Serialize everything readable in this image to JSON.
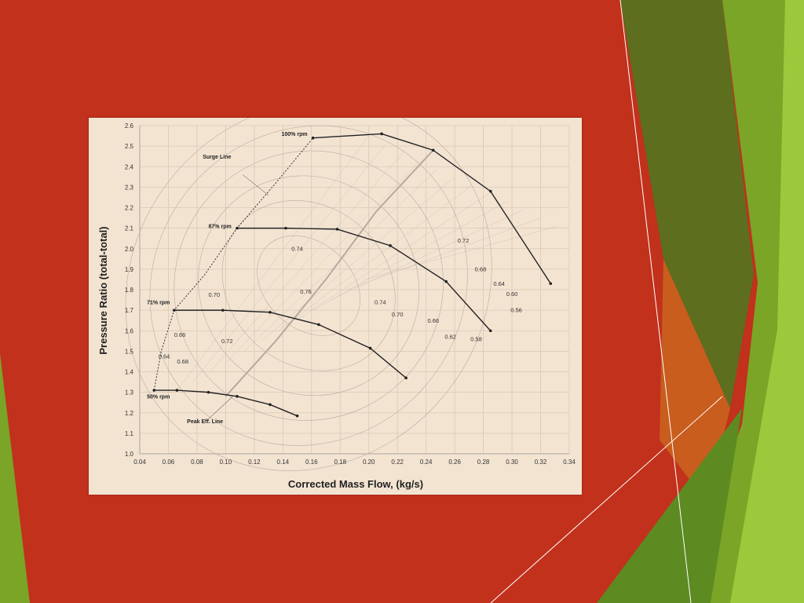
{
  "colors": {
    "slide_background": "#c1311c",
    "panel_background": "#f3e4d2",
    "speed_line": "#222222",
    "contour": "#b9aa9c",
    "grid": "#d9c7b5",
    "peak_line": "#b5aaa0",
    "green_dark": "#5d6e1e",
    "green_mid": "#7aa527",
    "green_light": "#9cc93b",
    "orange": "#c9651f"
  },
  "chart_data": {
    "type": "line",
    "xlabel": "Corrected Mass Flow, (kg/s)",
    "ylabel": "Pressure Ratio (total-total)",
    "xlim": [
      0.04,
      0.34
    ],
    "ylim": [
      1.0,
      2.6
    ],
    "xticks": [
      "0.04",
      "0.06",
      "0.08",
      "0.10",
      "0.12",
      "0.14",
      "0.16",
      "0.18",
      "0.20",
      "0.22",
      "0.24",
      "0.26",
      "0.28",
      "0.30",
      "0.32",
      "0.34"
    ],
    "yticks": [
      "1.0",
      "1.1",
      "1.2",
      "1.3",
      "1.4",
      "1.5",
      "1.6",
      "1.7",
      "1.8",
      "1.9",
      "2.0",
      "2.1",
      "2.2",
      "2.3",
      "2.4",
      "2.5",
      "2.6"
    ],
    "grid": true,
    "series": [
      {
        "name": "100% rpm",
        "x": [
          0.161,
          0.209,
          0.245,
          0.285,
          0.327
        ],
        "y": [
          2.54,
          2.56,
          2.48,
          2.28,
          1.83
        ]
      },
      {
        "name": "87% rpm",
        "x": [
          0.108,
          0.142,
          0.178,
          0.215,
          0.254,
          0.285
        ],
        "y": [
          2.1,
          2.1,
          2.095,
          2.015,
          1.84,
          1.6
        ]
      },
      {
        "name": "71% rpm",
        "x": [
          0.064,
          0.098,
          0.131,
          0.165,
          0.201,
          0.226
        ],
        "y": [
          1.7,
          1.7,
          1.69,
          1.63,
          1.515,
          1.37
        ]
      },
      {
        "name": "50% rpm",
        "x": [
          0.05,
          0.066,
          0.088,
          0.108,
          0.131,
          0.15
        ],
        "y": [
          1.31,
          1.31,
          1.3,
          1.28,
          1.24,
          1.185
        ]
      }
    ],
    "surge_line": {
      "name": "Surge Line",
      "x": [
        0.05,
        0.055,
        0.064,
        0.085,
        0.108,
        0.135,
        0.161
      ],
      "y": [
        1.31,
        1.5,
        1.7,
        1.87,
        2.1,
        2.32,
        2.54
      ]
    },
    "peak_efficiency_line": {
      "name": "Peak Eff. Line",
      "x": [
        0.1,
        0.135,
        0.17,
        0.205,
        0.245
      ],
      "y": [
        1.28,
        1.55,
        1.85,
        2.18,
        2.48
      ]
    },
    "efficiency_labels": [
      {
        "text": "0.74",
        "x": 0.15,
        "y": 1.99
      },
      {
        "text": "0.76",
        "x": 0.156,
        "y": 1.78
      },
      {
        "text": "0.74",
        "x": 0.208,
        "y": 1.73
      },
      {
        "text": "0.72",
        "x": 0.266,
        "y": 2.03
      },
      {
        "text": "0.68",
        "x": 0.278,
        "y": 1.89
      },
      {
        "text": "0.64",
        "x": 0.291,
        "y": 1.82
      },
      {
        "text": "0.60",
        "x": 0.3,
        "y": 1.77
      },
      {
        "text": "0.56",
        "x": 0.303,
        "y": 1.69
      },
      {
        "text": "0.70",
        "x": 0.092,
        "y": 1.765
      },
      {
        "text": "0.70",
        "x": 0.22,
        "y": 1.67
      },
      {
        "text": "0.66",
        "x": 0.245,
        "y": 1.64
      },
      {
        "text": "0.62",
        "x": 0.257,
        "y": 1.56
      },
      {
        "text": "0.58",
        "x": 0.275,
        "y": 1.55
      },
      {
        "text": "0.66",
        "x": 0.068,
        "y": 1.57
      },
      {
        "text": "0.64",
        "x": 0.057,
        "y": 1.465
      },
      {
        "text": "0.68",
        "x": 0.07,
        "y": 1.44
      },
      {
        "text": "0.72",
        "x": 0.101,
        "y": 1.54
      }
    ],
    "annotations": [
      {
        "text": "100% rpm",
        "x": 0.139,
        "y": 2.55
      },
      {
        "text": "87% rpm",
        "x": 0.088,
        "y": 2.1
      },
      {
        "text": "71% rpm",
        "x": 0.045,
        "y": 1.73
      },
      {
        "text": "50% rpm",
        "x": 0.045,
        "y": 1.27
      },
      {
        "text": "Surge Line",
        "x": 0.084,
        "y": 2.44
      },
      {
        "text": "Peak Eff. Line",
        "x": 0.073,
        "y": 1.15
      }
    ]
  }
}
